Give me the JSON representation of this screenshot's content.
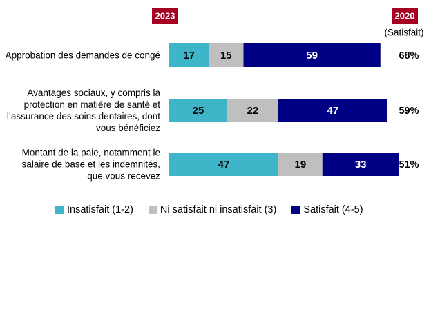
{
  "chart_data": {
    "type": "stacked-bar-horizontal",
    "period_label": "2023",
    "comparison_label": "2020",
    "comparison_subtitle": "(Satisfait)",
    "categories": [
      "Approbation des demandes de congé",
      "Avantages sociaux, y compris la protection en matière de santé et l’assurance des soins dentaires, dont vous bénéficiez",
      "Montant de la paie, notamment le salaire de base et les indemnités, que vous recevez"
    ],
    "series": [
      {
        "name": "Insatisfait (1-2)",
        "color": "#3fb5c9",
        "label_color": "#000000",
        "values": [
          17,
          25,
          47
        ]
      },
      {
        "name": "Ni satisfait ni insatisfait (3)",
        "color": "#bfbfbf",
        "label_color": "#000000",
        "values": [
          15,
          22,
          19
        ]
      },
      {
        "name": "Satisfait (4-5)",
        "color": "#000085",
        "label_color": "#ffffff",
        "values": [
          59,
          47,
          33
        ]
      }
    ],
    "comparison_values": [
      68,
      59,
      51
    ],
    "comparison_value_labels": [
      "68%",
      "59%",
      "51%"
    ],
    "xlim": [
      0,
      100
    ],
    "badge_color": "#a50021",
    "legend_position": "bottom"
  }
}
